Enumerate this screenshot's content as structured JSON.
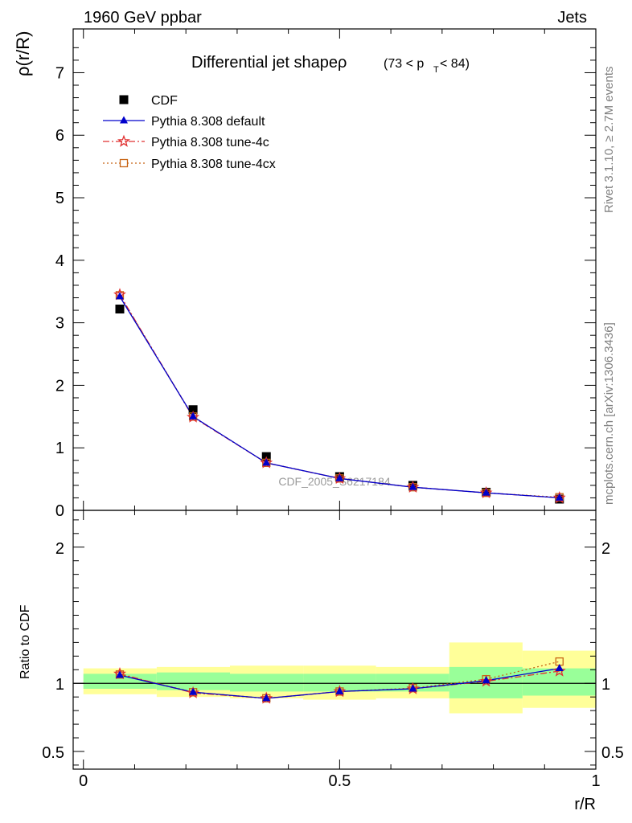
{
  "header": {
    "left_label": "1960 GeV ppbar",
    "right_label": "Jets"
  },
  "side_labels": {
    "rivet": "Rivet 3.1.10, ≥ 2.7M events",
    "mcplots": "mcplots.cern.ch [arXiv:1306.3436]"
  },
  "watermark": "CDF_2005_S6217184",
  "colors": {
    "cdf": "#000000",
    "default": "#0000cc",
    "tune4c": "#e03030",
    "tune4cx": "#c86414",
    "band_inner": "#99ff99",
    "band_outer": "#ffff99"
  },
  "chart_data": [
    {
      "type": "line",
      "title_main": "Differential jet shapeρ",
      "title_range": "(73 < p",
      "title_sub": "T",
      "title_end": " < 84)",
      "ylabel": "ρ(r/R)",
      "ylim": [
        0,
        7.7
      ],
      "yticks": [
        0,
        1,
        2,
        3,
        4,
        5,
        6,
        7
      ],
      "ytick_labels": [
        "0",
        "1",
        "2",
        "3",
        "4",
        "5",
        "6",
        "7"
      ],
      "x": [
        0.05,
        0.15,
        0.25,
        0.35,
        0.45,
        0.55,
        0.65,
        0.75,
        0.85,
        0.95
      ],
      "legend": [
        "CDF",
        "Pythia 8.308 default",
        "Pythia 8.308 tune-4c",
        "Pythia 8.308 tune-4cx"
      ],
      "series": [
        {
          "name": "CDF",
          "x": [
            0.071,
            0.214,
            0.357,
            0.5,
            0.643,
            0.786,
            0.929
          ],
          "values": [
            3.22,
            1.61,
            0.86,
            0.54,
            0.4,
            0.29,
            0.18
          ]
        },
        {
          "name": "Pythia 8.308 default",
          "x": [
            0.071,
            0.214,
            0.357,
            0.5,
            0.643,
            0.786,
            0.929
          ],
          "values": [
            3.42,
            1.5,
            0.76,
            0.51,
            0.37,
            0.28,
            0.2
          ]
        },
        {
          "name": "Pythia 8.308 tune-4c",
          "x": [
            0.071,
            0.214,
            0.357,
            0.5,
            0.643,
            0.786,
            0.929
          ],
          "values": [
            3.45,
            1.49,
            0.76,
            0.51,
            0.37,
            0.28,
            0.2
          ]
        },
        {
          "name": "Pythia 8.308 tune-4cx",
          "x": [
            0.071,
            0.214,
            0.357,
            0.5,
            0.643,
            0.786,
            0.929
          ],
          "values": [
            3.44,
            1.5,
            0.76,
            0.51,
            0.37,
            0.28,
            0.21
          ]
        }
      ]
    },
    {
      "type": "line",
      "ylabel": "Ratio to CDF",
      "xlabel": "r/R",
      "xlim": [
        -0.02,
        1.0
      ],
      "ylim": [
        0.37,
        2.27
      ],
      "xticks": [
        0,
        0.5,
        1
      ],
      "xtick_labels": [
        "0",
        "0.5",
        "1"
      ],
      "yticks": [
        0.5,
        1,
        2
      ],
      "ytick_labels": [
        "0.5",
        "1",
        "2"
      ],
      "x": [
        0.071,
        0.214,
        0.357,
        0.5,
        0.643,
        0.786,
        0.929
      ],
      "bins": [
        [
          0,
          0.143
        ],
        [
          0.143,
          0.286
        ],
        [
          0.286,
          0.429
        ],
        [
          0.429,
          0.571
        ],
        [
          0.571,
          0.714
        ],
        [
          0.714,
          0.857
        ],
        [
          0.857,
          1.0
        ]
      ],
      "band_inner": [
        [
          0.96,
          1.07
        ],
        [
          0.95,
          1.08
        ],
        [
          0.94,
          1.07
        ],
        [
          0.94,
          1.07
        ],
        [
          0.94,
          1.07
        ],
        [
          0.89,
          1.12
        ],
        [
          0.91,
          1.11
        ]
      ],
      "band_outer": [
        [
          0.92,
          1.11
        ],
        [
          0.9,
          1.12
        ],
        [
          0.89,
          1.13
        ],
        [
          0.88,
          1.13
        ],
        [
          0.89,
          1.12
        ],
        [
          0.78,
          1.3
        ],
        [
          0.82,
          1.24
        ]
      ],
      "series": [
        {
          "name": "Pythia 8.308 default",
          "values": [
            1.06,
            0.935,
            0.89,
            0.94,
            0.96,
            1.02,
            1.11
          ]
        },
        {
          "name": "Pythia 8.308 tune-4c",
          "values": [
            1.07,
            0.93,
            0.89,
            0.94,
            0.96,
            1.015,
            1.09
          ]
        },
        {
          "name": "Pythia 8.308 tune-4cx",
          "values": [
            1.065,
            0.935,
            0.89,
            0.94,
            0.965,
            1.03,
            1.16
          ]
        }
      ]
    }
  ]
}
